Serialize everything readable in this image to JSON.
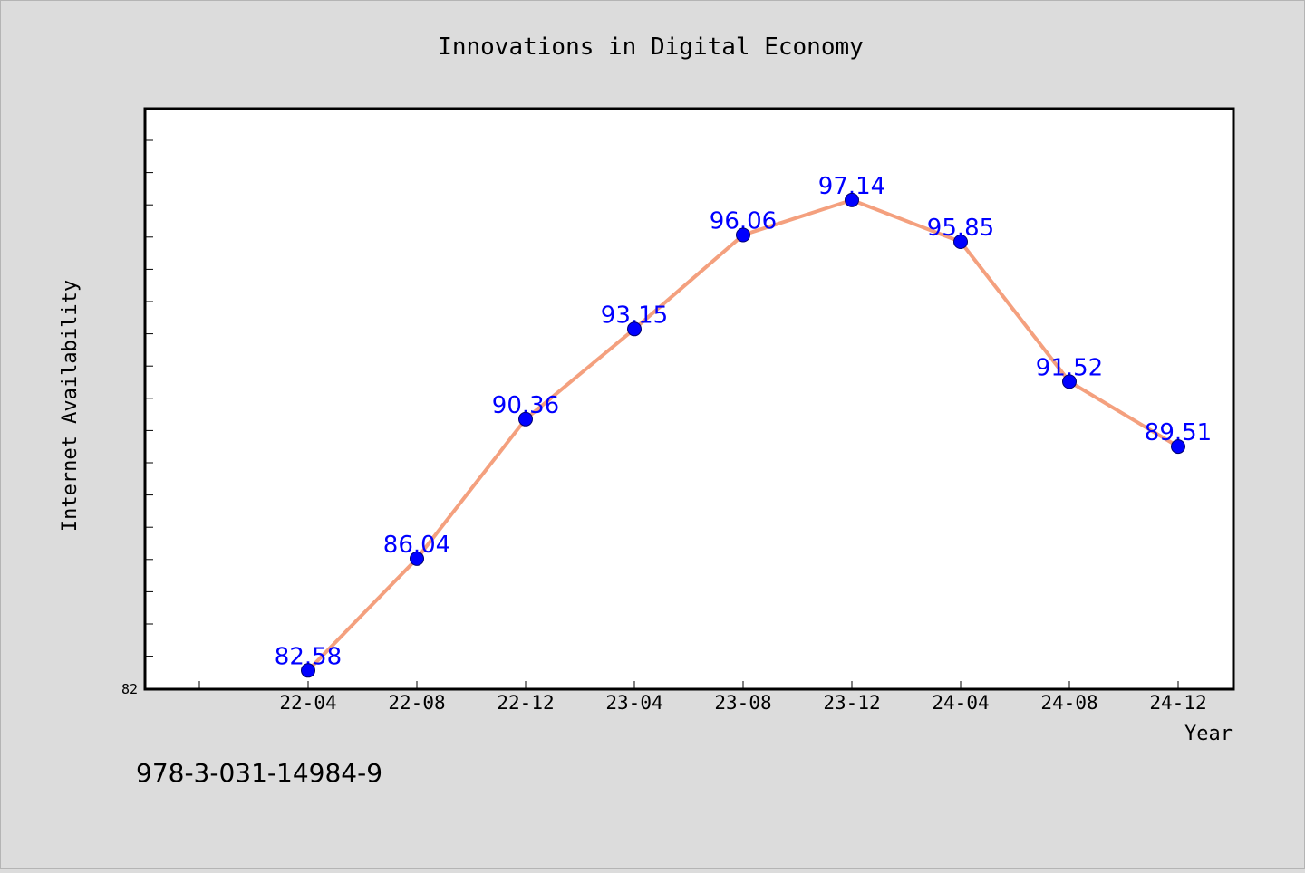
{
  "chart_data": {
    "type": "line",
    "title": "Innovations in Digital Economy",
    "xlabel": "Year",
    "ylabel": "Internet Availability",
    "categories": [
      "22-04",
      "22-08",
      "22-12",
      "23-04",
      "23-08",
      "23-12",
      "24-04",
      "24-08",
      "24-12"
    ],
    "series": [
      {
        "values": [
          82.58,
          86.04,
          90.36,
          93.15,
          96.06,
          97.14,
          95.85,
          91.52,
          89.51
        ]
      }
    ],
    "ylim": [
      82,
      99.97
    ],
    "y_tick_labels": [
      "82"
    ],
    "data_labels": [
      "82.58",
      "86.04",
      "90.36",
      "93.15",
      "96.06",
      "97.14",
      "95.85",
      "91.52",
      "89.51"
    ],
    "line_color": "#f4a07e",
    "marker_color": "#0000ff",
    "label_color": "#0000ff",
    "grid": false,
    "legend": "none"
  },
  "footer_text": "978-3-031-14984-9"
}
